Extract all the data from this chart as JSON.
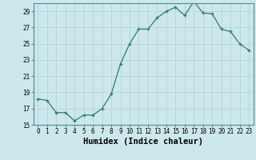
{
  "x": [
    0,
    1,
    2,
    3,
    4,
    5,
    6,
    7,
    8,
    9,
    10,
    11,
    12,
    13,
    14,
    15,
    16,
    17,
    18,
    19,
    20,
    21,
    22,
    23
  ],
  "y": [
    18.2,
    18.0,
    16.5,
    16.5,
    15.5,
    16.2,
    16.2,
    17.0,
    18.8,
    22.5,
    25.0,
    26.8,
    26.8,
    28.2,
    29.0,
    29.5,
    28.5,
    30.2,
    28.8,
    28.7,
    26.8,
    26.5,
    25.0,
    24.2
  ],
  "line_color": "#2e7d6e",
  "marker": "+",
  "bg_color": "#cce8ec",
  "grid_color": "#aed0d5",
  "xlabel": "Humidex (Indice chaleur)",
  "ylim_min": 15,
  "ylim_max": 30,
  "yticks": [
    15,
    17,
    19,
    21,
    23,
    25,
    27,
    29
  ],
  "xticks": [
    0,
    1,
    2,
    3,
    4,
    5,
    6,
    7,
    8,
    9,
    10,
    11,
    12,
    13,
    14,
    15,
    16,
    17,
    18,
    19,
    20,
    21,
    22,
    23
  ],
  "tick_fontsize": 5.5,
  "xlabel_fontsize": 7.5
}
